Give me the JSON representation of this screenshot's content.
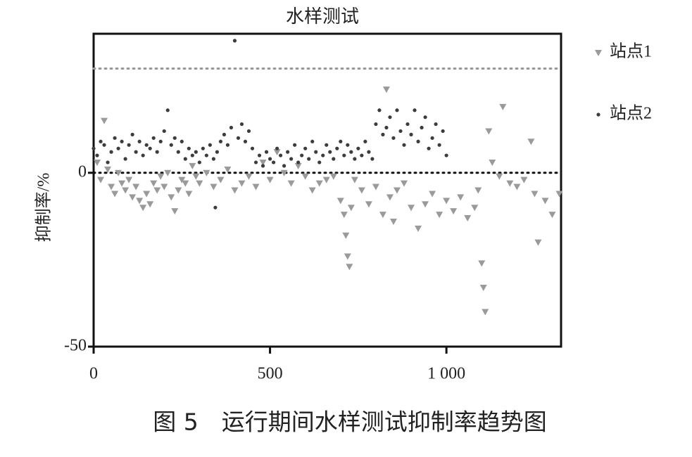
{
  "chart_data": {
    "type": "scatter",
    "title": "水样测试",
    "y_label": "抑制率/%",
    "caption": "图 5　运行期间水样测试抑制率趋势图",
    "xlim": [
      0,
      1325
    ],
    "ylim": [
      -50,
      40
    ],
    "xticks": [
      0,
      500,
      {
        "value": 1000,
        "label": "1 000"
      }
    ],
    "yticks": [
      -50,
      0
    ],
    "reference_lines": [
      {
        "value": 30,
        "color": "#999999"
      },
      {
        "value": 0,
        "color": "#111111"
      }
    ],
    "series": [
      {
        "name": "站点1",
        "color": "#9a9a9a",
        "marker": "triangle-down",
        "x": [
          10,
          20,
          30,
          40,
          50,
          60,
          70,
          80,
          90,
          100,
          110,
          120,
          130,
          140,
          150,
          160,
          170,
          180,
          190,
          200,
          210,
          220,
          230,
          240,
          250,
          260,
          270,
          280,
          290,
          300,
          320,
          340,
          360,
          380,
          400,
          420,
          440,
          460,
          480,
          500,
          520,
          540,
          560,
          580,
          600,
          620,
          640,
          660,
          680,
          700,
          710,
          715,
          720,
          725,
          730,
          740,
          760,
          780,
          800,
          820,
          830,
          840,
          850,
          860,
          880,
          900,
          920,
          940,
          960,
          980,
          1000,
          1020,
          1040,
          1060,
          1080,
          1090,
          1100,
          1105,
          1110,
          1120,
          1130,
          1150,
          1160,
          1180,
          1200,
          1220,
          1240,
          1250,
          1260,
          1280,
          1300,
          1320
        ],
        "values": [
          3,
          -2,
          15,
          1,
          -4,
          -6,
          0,
          -3,
          -5,
          -2,
          -7,
          -4,
          -8,
          -10,
          -6,
          -9,
          -3,
          -5,
          -1,
          -4,
          0,
          -7,
          -11,
          -5,
          -2,
          -3,
          -6,
          2,
          -1,
          -3,
          0,
          -4,
          -2,
          1,
          -5,
          -3,
          -1,
          -4,
          3,
          -2,
          6,
          0,
          -3,
          2,
          -1,
          -5,
          -3,
          -2,
          -1,
          -8,
          -12,
          -18,
          -24,
          -27,
          -10,
          -2,
          -5,
          -9,
          -4,
          -12,
          24,
          -7,
          -14,
          -5,
          -3,
          -10,
          -16,
          -9,
          -6,
          -12,
          -8,
          -11,
          -7,
          -13,
          -10,
          -5,
          -26,
          -33,
          -40,
          12,
          3,
          -1,
          19,
          -3,
          -4,
          -2,
          9,
          -6,
          -20,
          -8,
          -12,
          -6
        ]
      },
      {
        "name": "站点2",
        "color": "#3c3c3c",
        "marker": "circle",
        "x": [
          0,
          10,
          20,
          30,
          40,
          50,
          60,
          70,
          80,
          90,
          100,
          110,
          120,
          130,
          140,
          150,
          160,
          170,
          180,
          190,
          200,
          210,
          220,
          230,
          240,
          250,
          260,
          270,
          280,
          290,
          300,
          310,
          320,
          330,
          340,
          345,
          350,
          360,
          370,
          380,
          390,
          400,
          410,
          420,
          430,
          440,
          450,
          460,
          470,
          480,
          490,
          500,
          510,
          520,
          530,
          540,
          550,
          560,
          570,
          580,
          590,
          600,
          610,
          620,
          630,
          640,
          650,
          660,
          670,
          680,
          690,
          700,
          710,
          720,
          730,
          740,
          750,
          760,
          770,
          780,
          790,
          800,
          810,
          820,
          830,
          840,
          850,
          860,
          870,
          880,
          890,
          900,
          910,
          920,
          930,
          940,
          950,
          960,
          970,
          980,
          990,
          1000
        ],
        "values": [
          7,
          5,
          9,
          8,
          3,
          6,
          10,
          7,
          9,
          4,
          8,
          11,
          6,
          9,
          5,
          8,
          7,
          10,
          6,
          9,
          12,
          18,
          8,
          10,
          6,
          9,
          4,
          7,
          5,
          6,
          3,
          7,
          5,
          8,
          4,
          -10,
          6,
          9,
          11,
          8,
          13,
          38,
          10,
          14,
          9,
          12,
          7,
          3,
          5,
          2,
          6,
          4,
          3,
          7,
          5,
          2,
          6,
          4,
          8,
          3,
          5,
          7,
          4,
          9,
          6,
          3,
          5,
          8,
          6,
          4,
          7,
          9,
          5,
          8,
          6,
          4,
          7,
          5,
          9,
          6,
          4,
          14,
          18,
          11,
          13,
          16,
          10,
          18,
          12,
          8,
          14,
          11,
          18,
          9,
          13,
          16,
          7,
          10,
          14,
          8,
          12,
          5
        ]
      }
    ]
  }
}
